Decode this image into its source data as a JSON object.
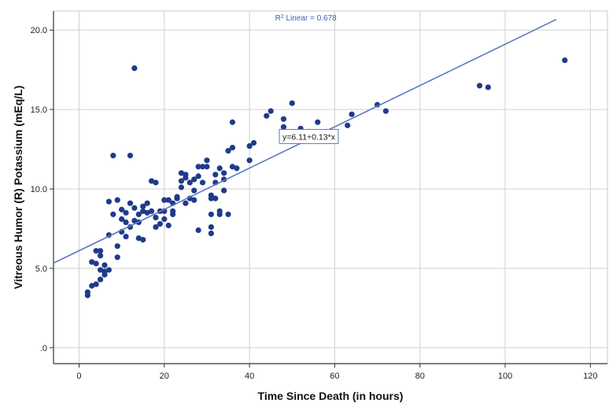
{
  "chart_data": {
    "type": "scatter",
    "xlabel": "Time Since Death (in hours)",
    "ylabel": "Vitreous Humor (R) Potassium (mEq/L)",
    "xlim": [
      -6,
      124
    ],
    "ylim": [
      -1,
      21.2
    ],
    "x_ticks": [
      0,
      20,
      40,
      60,
      80,
      100,
      120
    ],
    "y_ticks": [
      0,
      5,
      10,
      15,
      20
    ],
    "x_tick_labels": [
      "0",
      "20",
      "40",
      "60",
      "80",
      "100",
      "120"
    ],
    "y_tick_labels": [
      ".0",
      "5.0",
      "10.0",
      "15.0",
      "20.0"
    ],
    "grid": true,
    "point_color": "#1f3b8a",
    "line_color": "#5b78c2",
    "fit_line": {
      "intercept": 6.11,
      "slope": 0.13,
      "x_range": [
        -6,
        112
      ]
    },
    "r2_label": {
      "prefix": "R",
      "superscript": "2",
      "text": " Linear = 0.678",
      "x": 46,
      "y": 20.6
    },
    "equation_label": {
      "text": "y=6.11+0.13*x",
      "x": 47,
      "y": 13.3
    },
    "points": [
      [
        2,
        3.3
      ],
      [
        2,
        3.5
      ],
      [
        3,
        3.9
      ],
      [
        3,
        5.4
      ],
      [
        4,
        5.3
      ],
      [
        4,
        4.0
      ],
      [
        4,
        6.1
      ],
      [
        5,
        4.3
      ],
      [
        5,
        4.9
      ],
      [
        5,
        5.8
      ],
      [
        5,
        6.1
      ],
      [
        5,
        4.3
      ],
      [
        6,
        4.6
      ],
      [
        6,
        4.8
      ],
      [
        6,
        5.2
      ],
      [
        7,
        4.9
      ],
      [
        7,
        7.1
      ],
      [
        7,
        9.2
      ],
      [
        8,
        8.4
      ],
      [
        8,
        12.1
      ],
      [
        9,
        9.3
      ],
      [
        9,
        6.4
      ],
      [
        9,
        5.7
      ],
      [
        10,
        7.3
      ],
      [
        10,
        8.1
      ],
      [
        10,
        8.7
      ],
      [
        11,
        7.9
      ],
      [
        11,
        8.5
      ],
      [
        11,
        7.0
      ],
      [
        12,
        9.1
      ],
      [
        12,
        12.1
      ],
      [
        12,
        7.6
      ],
      [
        13,
        17.6
      ],
      [
        13,
        8.8
      ],
      [
        13,
        8.0
      ],
      [
        14,
        6.9
      ],
      [
        14,
        7.9
      ],
      [
        14,
        8.4
      ],
      [
        15,
        6.8
      ],
      [
        15,
        8.6
      ],
      [
        15,
        8.9
      ],
      [
        16,
        8.5
      ],
      [
        16,
        9.1
      ],
      [
        17,
        8.6
      ],
      [
        17,
        10.5
      ],
      [
        18,
        7.6
      ],
      [
        18,
        10.4
      ],
      [
        18,
        8.2
      ],
      [
        19,
        7.8
      ],
      [
        19,
        8.6
      ],
      [
        20,
        8.1
      ],
      [
        20,
        9.3
      ],
      [
        20,
        8.6
      ],
      [
        21,
        7.7
      ],
      [
        21,
        9.3
      ],
      [
        22,
        8.4
      ],
      [
        22,
        8.6
      ],
      [
        22,
        9.1
      ],
      [
        23,
        9.4
      ],
      [
        23,
        9.5
      ],
      [
        24,
        10.5
      ],
      [
        24,
        10.1
      ],
      [
        24,
        11.0
      ],
      [
        25,
        9.1
      ],
      [
        25,
        10.7
      ],
      [
        25,
        10.9
      ],
      [
        26,
        10.4
      ],
      [
        26,
        9.4
      ],
      [
        27,
        10.6
      ],
      [
        27,
        9.9
      ],
      [
        27,
        9.3
      ],
      [
        28,
        7.4
      ],
      [
        28,
        10.8
      ],
      [
        28,
        11.4
      ],
      [
        29,
        10.4
      ],
      [
        29,
        11.4
      ],
      [
        30,
        11.4
      ],
      [
        30,
        11.8
      ],
      [
        31,
        9.4
      ],
      [
        31,
        7.6
      ],
      [
        31,
        7.2
      ],
      [
        31,
        8.4
      ],
      [
        31,
        9.6
      ],
      [
        32,
        9.4
      ],
      [
        32,
        10.4
      ],
      [
        32,
        10.9
      ],
      [
        33,
        8.4
      ],
      [
        33,
        11.3
      ],
      [
        33,
        8.6
      ],
      [
        34,
        10.6
      ],
      [
        34,
        11.0
      ],
      [
        34,
        9.9
      ],
      [
        35,
        12.4
      ],
      [
        35,
        8.4
      ],
      [
        36,
        12.6
      ],
      [
        36,
        14.2
      ],
      [
        36,
        11.4
      ],
      [
        37,
        11.3
      ],
      [
        40,
        11.8
      ],
      [
        40,
        12.7
      ],
      [
        41,
        12.9
      ],
      [
        44,
        14.6
      ],
      [
        45,
        14.9
      ],
      [
        48,
        13.9
      ],
      [
        48,
        14.4
      ],
      [
        50,
        15.4
      ],
      [
        52,
        13.8
      ],
      [
        54,
        13.6
      ],
      [
        56,
        14.2
      ],
      [
        63,
        14.0
      ],
      [
        64,
        14.7
      ],
      [
        70,
        15.3
      ],
      [
        72,
        14.9
      ],
      [
        94,
        16.5
      ],
      [
        96,
        16.4
      ],
      [
        114,
        18.1
      ]
    ]
  }
}
